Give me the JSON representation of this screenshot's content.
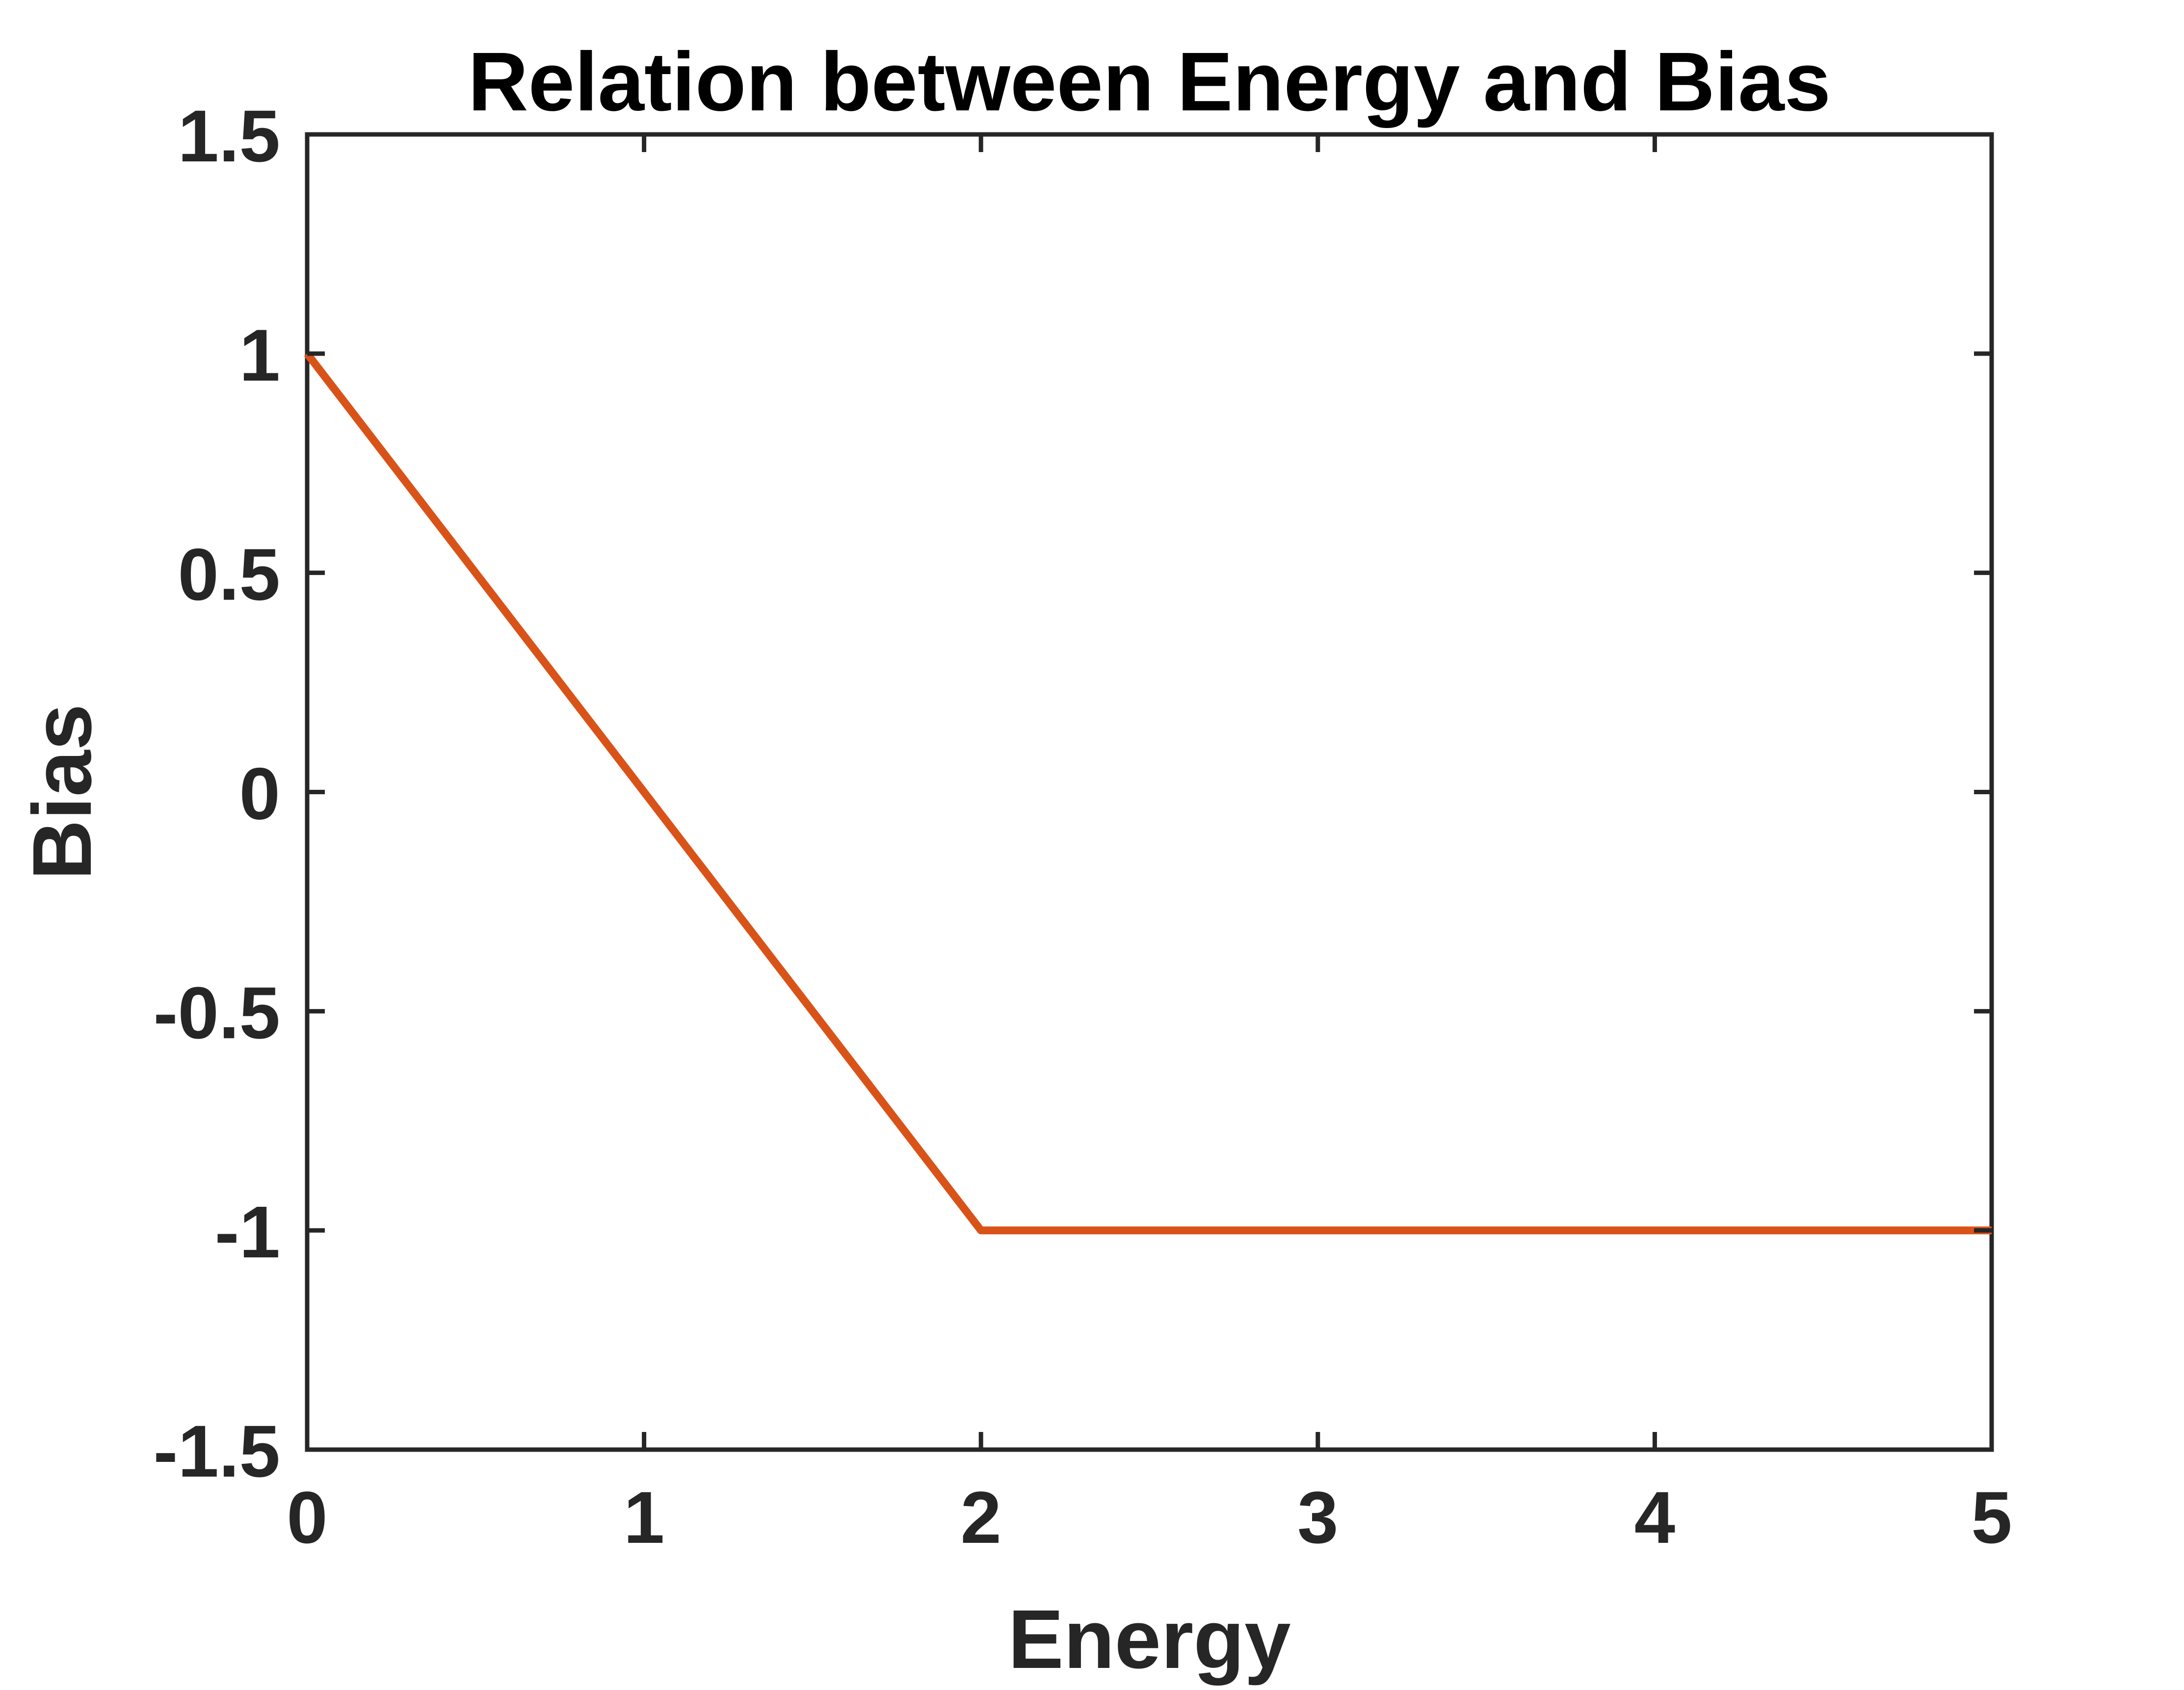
{
  "chart_data": {
    "type": "line",
    "title": "Relation between Energy and Bias",
    "xlabel": "Energy",
    "ylabel": "Bias",
    "xlim": [
      0,
      5
    ],
    "ylim": [
      -1.5,
      1.5
    ],
    "xticks": [
      0,
      1,
      2,
      3,
      4,
      5
    ],
    "xtick_labels": [
      "0",
      "1",
      "2",
      "3",
      "4",
      "5"
    ],
    "yticks": [
      -1.5,
      -1,
      -0.5,
      0,
      0.5,
      1,
      1.5
    ],
    "ytick_labels": [
      "-1.5",
      "-1",
      "-0.5",
      "0",
      "0.5",
      "1",
      "1.5"
    ],
    "grid": false,
    "series": [
      {
        "x": [
          0,
          2,
          5
        ],
        "y": [
          1,
          -1,
          -1
        ],
        "color": "#D95319"
      }
    ],
    "axis_color": "#262626"
  }
}
